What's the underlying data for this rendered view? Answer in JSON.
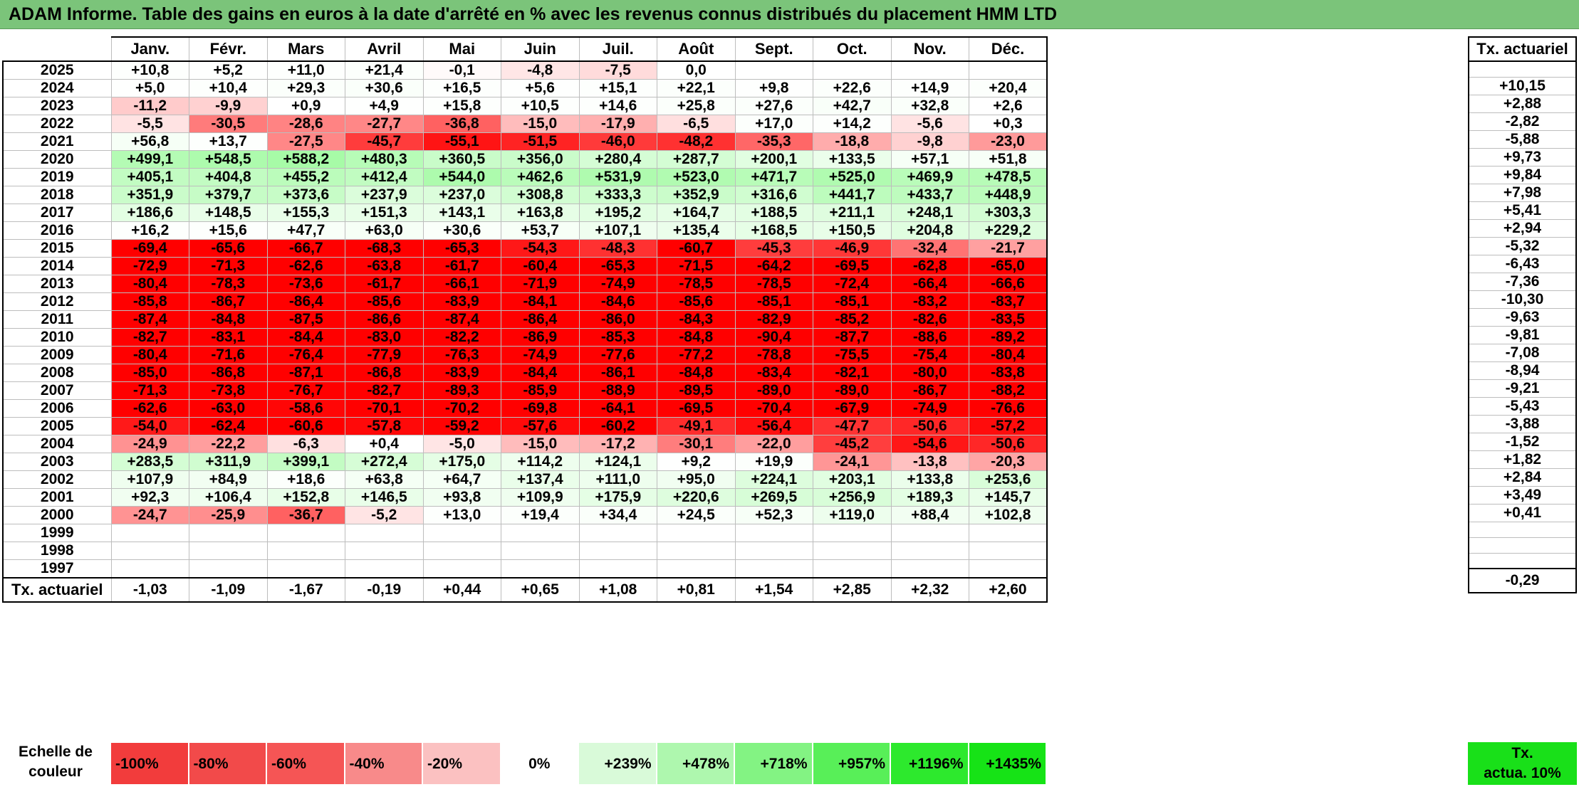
{
  "title": "ADAM Informe. Table des gains en euros à la date d'arrêté en % avec les revenus connus distribués du placement HMM LTD",
  "months": [
    "Janv.",
    "Févr.",
    "Mars",
    "Avril",
    "Mai",
    "Juin",
    "Juil.",
    "Août",
    "Sept.",
    "Oct.",
    "Nov.",
    "Déc."
  ],
  "side_header": "Tx. actuariel",
  "total_label": "Tx. actuariel",
  "rows": [
    {
      "year": "2025",
      "values": [
        "+10,8",
        "+5,2",
        "+11,0",
        "+21,4",
        "-0,1",
        "-4,8",
        "-7,5",
        "0,0",
        "",
        "",
        "",
        ""
      ],
      "rate": ""
    },
    {
      "year": "2024",
      "values": [
        "+5,0",
        "+10,4",
        "+29,3",
        "+30,6",
        "+16,5",
        "+5,6",
        "+15,1",
        "+22,1",
        "+9,8",
        "+22,6",
        "+14,9",
        "+20,4"
      ],
      "rate": "+10,15"
    },
    {
      "year": "2023",
      "values": [
        "-11,2",
        "-9,9",
        "+0,9",
        "+4,9",
        "+15,8",
        "+10,5",
        "+14,6",
        "+25,8",
        "+27,6",
        "+42,7",
        "+32,8",
        "+2,6"
      ],
      "rate": "+2,88"
    },
    {
      "year": "2022",
      "values": [
        "-5,5",
        "-30,5",
        "-28,6",
        "-27,7",
        "-36,8",
        "-15,0",
        "-17,9",
        "-6,5",
        "+17,0",
        "+14,2",
        "-5,6",
        "+0,3"
      ],
      "rate": "-2,82"
    },
    {
      "year": "2021",
      "values": [
        "+56,8",
        "+13,7",
        "-27,5",
        "-45,7",
        "-55,1",
        "-51,5",
        "-46,0",
        "-48,2",
        "-35,3",
        "-18,8",
        "-9,8",
        "-23,0"
      ],
      "rate": "-5,88"
    },
    {
      "year": "2020",
      "values": [
        "+499,1",
        "+548,5",
        "+588,2",
        "+480,3",
        "+360,5",
        "+356,0",
        "+280,4",
        "+287,7",
        "+200,1",
        "+133,5",
        "+57,1",
        "+51,8"
      ],
      "rate": "+9,73"
    },
    {
      "year": "2019",
      "values": [
        "+405,1",
        "+404,8",
        "+455,2",
        "+412,4",
        "+544,0",
        "+462,6",
        "+531,9",
        "+523,0",
        "+471,7",
        "+525,0",
        "+469,9",
        "+478,5"
      ],
      "rate": "+9,84"
    },
    {
      "year": "2018",
      "values": [
        "+351,9",
        "+379,7",
        "+373,6",
        "+237,9",
        "+237,0",
        "+308,8",
        "+333,3",
        "+352,9",
        "+316,6",
        "+441,7",
        "+433,7",
        "+448,9"
      ],
      "rate": "+7,98"
    },
    {
      "year": "2017",
      "values": [
        "+186,6",
        "+148,5",
        "+155,3",
        "+151,3",
        "+143,1",
        "+163,8",
        "+195,2",
        "+164,7",
        "+188,5",
        "+211,1",
        "+248,1",
        "+303,3"
      ],
      "rate": "+5,41"
    },
    {
      "year": "2016",
      "values": [
        "+16,2",
        "+15,6",
        "+47,7",
        "+63,0",
        "+30,6",
        "+53,7",
        "+107,1",
        "+135,4",
        "+168,5",
        "+150,5",
        "+204,8",
        "+229,2"
      ],
      "rate": "+2,94"
    },
    {
      "year": "2015",
      "values": [
        "-69,4",
        "-65,6",
        "-66,7",
        "-68,3",
        "-65,3",
        "-54,3",
        "-48,3",
        "-60,7",
        "-45,3",
        "-46,9",
        "-32,4",
        "-21,7"
      ],
      "rate": "-5,32"
    },
    {
      "year": "2014",
      "values": [
        "-72,9",
        "-71,3",
        "-62,6",
        "-63,8",
        "-61,7",
        "-60,4",
        "-65,3",
        "-71,5",
        "-64,2",
        "-69,5",
        "-62,8",
        "-65,0"
      ],
      "rate": "-6,43"
    },
    {
      "year": "2013",
      "values": [
        "-80,4",
        "-78,3",
        "-73,6",
        "-61,7",
        "-66,1",
        "-71,9",
        "-74,9",
        "-78,5",
        "-78,5",
        "-72,4",
        "-66,4",
        "-66,6"
      ],
      "rate": "-7,36"
    },
    {
      "year": "2012",
      "values": [
        "-85,8",
        "-86,7",
        "-86,4",
        "-85,6",
        "-83,9",
        "-84,1",
        "-84,6",
        "-85,6",
        "-85,1",
        "-85,1",
        "-83,2",
        "-83,7"
      ],
      "rate": "-10,30"
    },
    {
      "year": "2011",
      "values": [
        "-87,4",
        "-84,8",
        "-87,5",
        "-86,6",
        "-87,4",
        "-86,4",
        "-86,0",
        "-84,3",
        "-82,9",
        "-85,2",
        "-82,6",
        "-83,5"
      ],
      "rate": "-9,63"
    },
    {
      "year": "2010",
      "values": [
        "-82,7",
        "-83,1",
        "-84,4",
        "-83,0",
        "-82,2",
        "-86,9",
        "-85,3",
        "-84,8",
        "-90,4",
        "-87,7",
        "-88,6",
        "-89,2"
      ],
      "rate": "-9,81"
    },
    {
      "year": "2009",
      "values": [
        "-80,4",
        "-71,6",
        "-76,4",
        "-77,9",
        "-76,3",
        "-74,9",
        "-77,6",
        "-77,2",
        "-78,8",
        "-75,5",
        "-75,4",
        "-80,4"
      ],
      "rate": "-7,08"
    },
    {
      "year": "2008",
      "values": [
        "-85,0",
        "-86,8",
        "-87,1",
        "-86,8",
        "-83,9",
        "-84,4",
        "-86,1",
        "-84,8",
        "-83,4",
        "-82,1",
        "-80,0",
        "-83,8"
      ],
      "rate": "-8,94"
    },
    {
      "year": "2007",
      "values": [
        "-71,3",
        "-73,8",
        "-76,7",
        "-82,7",
        "-89,3",
        "-85,9",
        "-88,9",
        "-89,5",
        "-89,0",
        "-89,0",
        "-86,7",
        "-88,2"
      ],
      "rate": "-9,21"
    },
    {
      "year": "2006",
      "values": [
        "-62,6",
        "-63,0",
        "-58,6",
        "-70,1",
        "-70,2",
        "-69,8",
        "-64,1",
        "-69,5",
        "-70,4",
        "-67,9",
        "-74,9",
        "-76,6"
      ],
      "rate": "-5,43"
    },
    {
      "year": "2005",
      "values": [
        "-54,0",
        "-62,4",
        "-60,6",
        "-57,8",
        "-59,2",
        "-57,6",
        "-60,2",
        "-49,1",
        "-56,4",
        "-47,7",
        "-50,6",
        "-57,2"
      ],
      "rate": "-3,88"
    },
    {
      "year": "2004",
      "values": [
        "-24,9",
        "-22,2",
        "-6,3",
        "+0,4",
        "-5,0",
        "-15,0",
        "-17,2",
        "-30,1",
        "-22,0",
        "-45,2",
        "-54,6",
        "-50,6"
      ],
      "rate": "-1,52"
    },
    {
      "year": "2003",
      "values": [
        "+283,5",
        "+311,9",
        "+399,1",
        "+272,4",
        "+175,0",
        "+114,2",
        "+124,1",
        "+9,2",
        "+19,9",
        "-24,1",
        "-13,8",
        "-20,3"
      ],
      "rate": "+1,82"
    },
    {
      "year": "2002",
      "values": [
        "+107,9",
        "+84,9",
        "+18,6",
        "+63,8",
        "+64,7",
        "+137,4",
        "+111,0",
        "+95,0",
        "+224,1",
        "+203,1",
        "+133,8",
        "+253,6"
      ],
      "rate": "+2,84"
    },
    {
      "year": "2001",
      "values": [
        "+92,3",
        "+106,4",
        "+152,8",
        "+146,5",
        "+93,8",
        "+109,9",
        "+175,9",
        "+220,6",
        "+269,5",
        "+256,9",
        "+189,3",
        "+145,7"
      ],
      "rate": "+3,49"
    },
    {
      "year": "2000",
      "values": [
        "-24,7",
        "-25,9",
        "-36,7",
        "-5,2",
        "+13,0",
        "+19,4",
        "+34,4",
        "+24,5",
        "+52,3",
        "+119,0",
        "+88,4",
        "+102,8"
      ],
      "rate": "+0,41"
    },
    {
      "year": "1999",
      "values": [
        "",
        "",
        "",
        "",
        "",
        "",
        "",
        "",
        "",
        "",
        "",
        ""
      ],
      "rate": ""
    },
    {
      "year": "1998",
      "values": [
        "",
        "",
        "",
        "",
        "",
        "",
        "",
        "",
        "",
        "",
        "",
        ""
      ],
      "rate": ""
    },
    {
      "year": "1997",
      "values": [
        "",
        "",
        "",
        "",
        "",
        "",
        "",
        "",
        "",
        "",
        "",
        ""
      ],
      "rate": ""
    }
  ],
  "totals": {
    "values": [
      "-1,03",
      "-1,09",
      "-1,67",
      "-0,19",
      "+0,44",
      "+0,65",
      "+1,08",
      "+0,81",
      "+1,54",
      "+2,85",
      "+2,32",
      "+2,60"
    ],
    "rate": "-0,29"
  },
  "scale": {
    "label_line1": "Echelle de",
    "label_line2": "couleur",
    "swatches": [
      {
        "label": "-100%",
        "color": "#f23c3c",
        "kind": "neg"
      },
      {
        "label": "-80%",
        "color": "#f24a4a",
        "kind": "neg"
      },
      {
        "label": "-60%",
        "color": "#f55555",
        "kind": "neg"
      },
      {
        "label": "-40%",
        "color": "#f88a8a",
        "kind": "neg"
      },
      {
        "label": "-20%",
        "color": "#fbc1c1",
        "kind": "neg"
      },
      {
        "label": "0%",
        "color": "#ffffff",
        "kind": "zero"
      },
      {
        "label": "+239%",
        "color": "#d9fad9",
        "kind": "pos"
      },
      {
        "label": "+478%",
        "color": "#aef7ae",
        "kind": "pos"
      },
      {
        "label": "+718%",
        "color": "#83f383",
        "kind": "pos"
      },
      {
        "label": "+957%",
        "color": "#58ef58",
        "kind": "pos"
      },
      {
        "label": "+1196%",
        "color": "#2de92d",
        "kind": "pos"
      },
      {
        "label": "+1435%",
        "color": "#16e316",
        "kind": "pos"
      }
    ],
    "side_line1": "Tx.",
    "side_line2": "actua. 10%",
    "side_color": "#19e019"
  },
  "colors": {
    "title_bg": "#7bc47a",
    "negative_max": "#ff0000",
    "positive_max": "#16e316"
  }
}
